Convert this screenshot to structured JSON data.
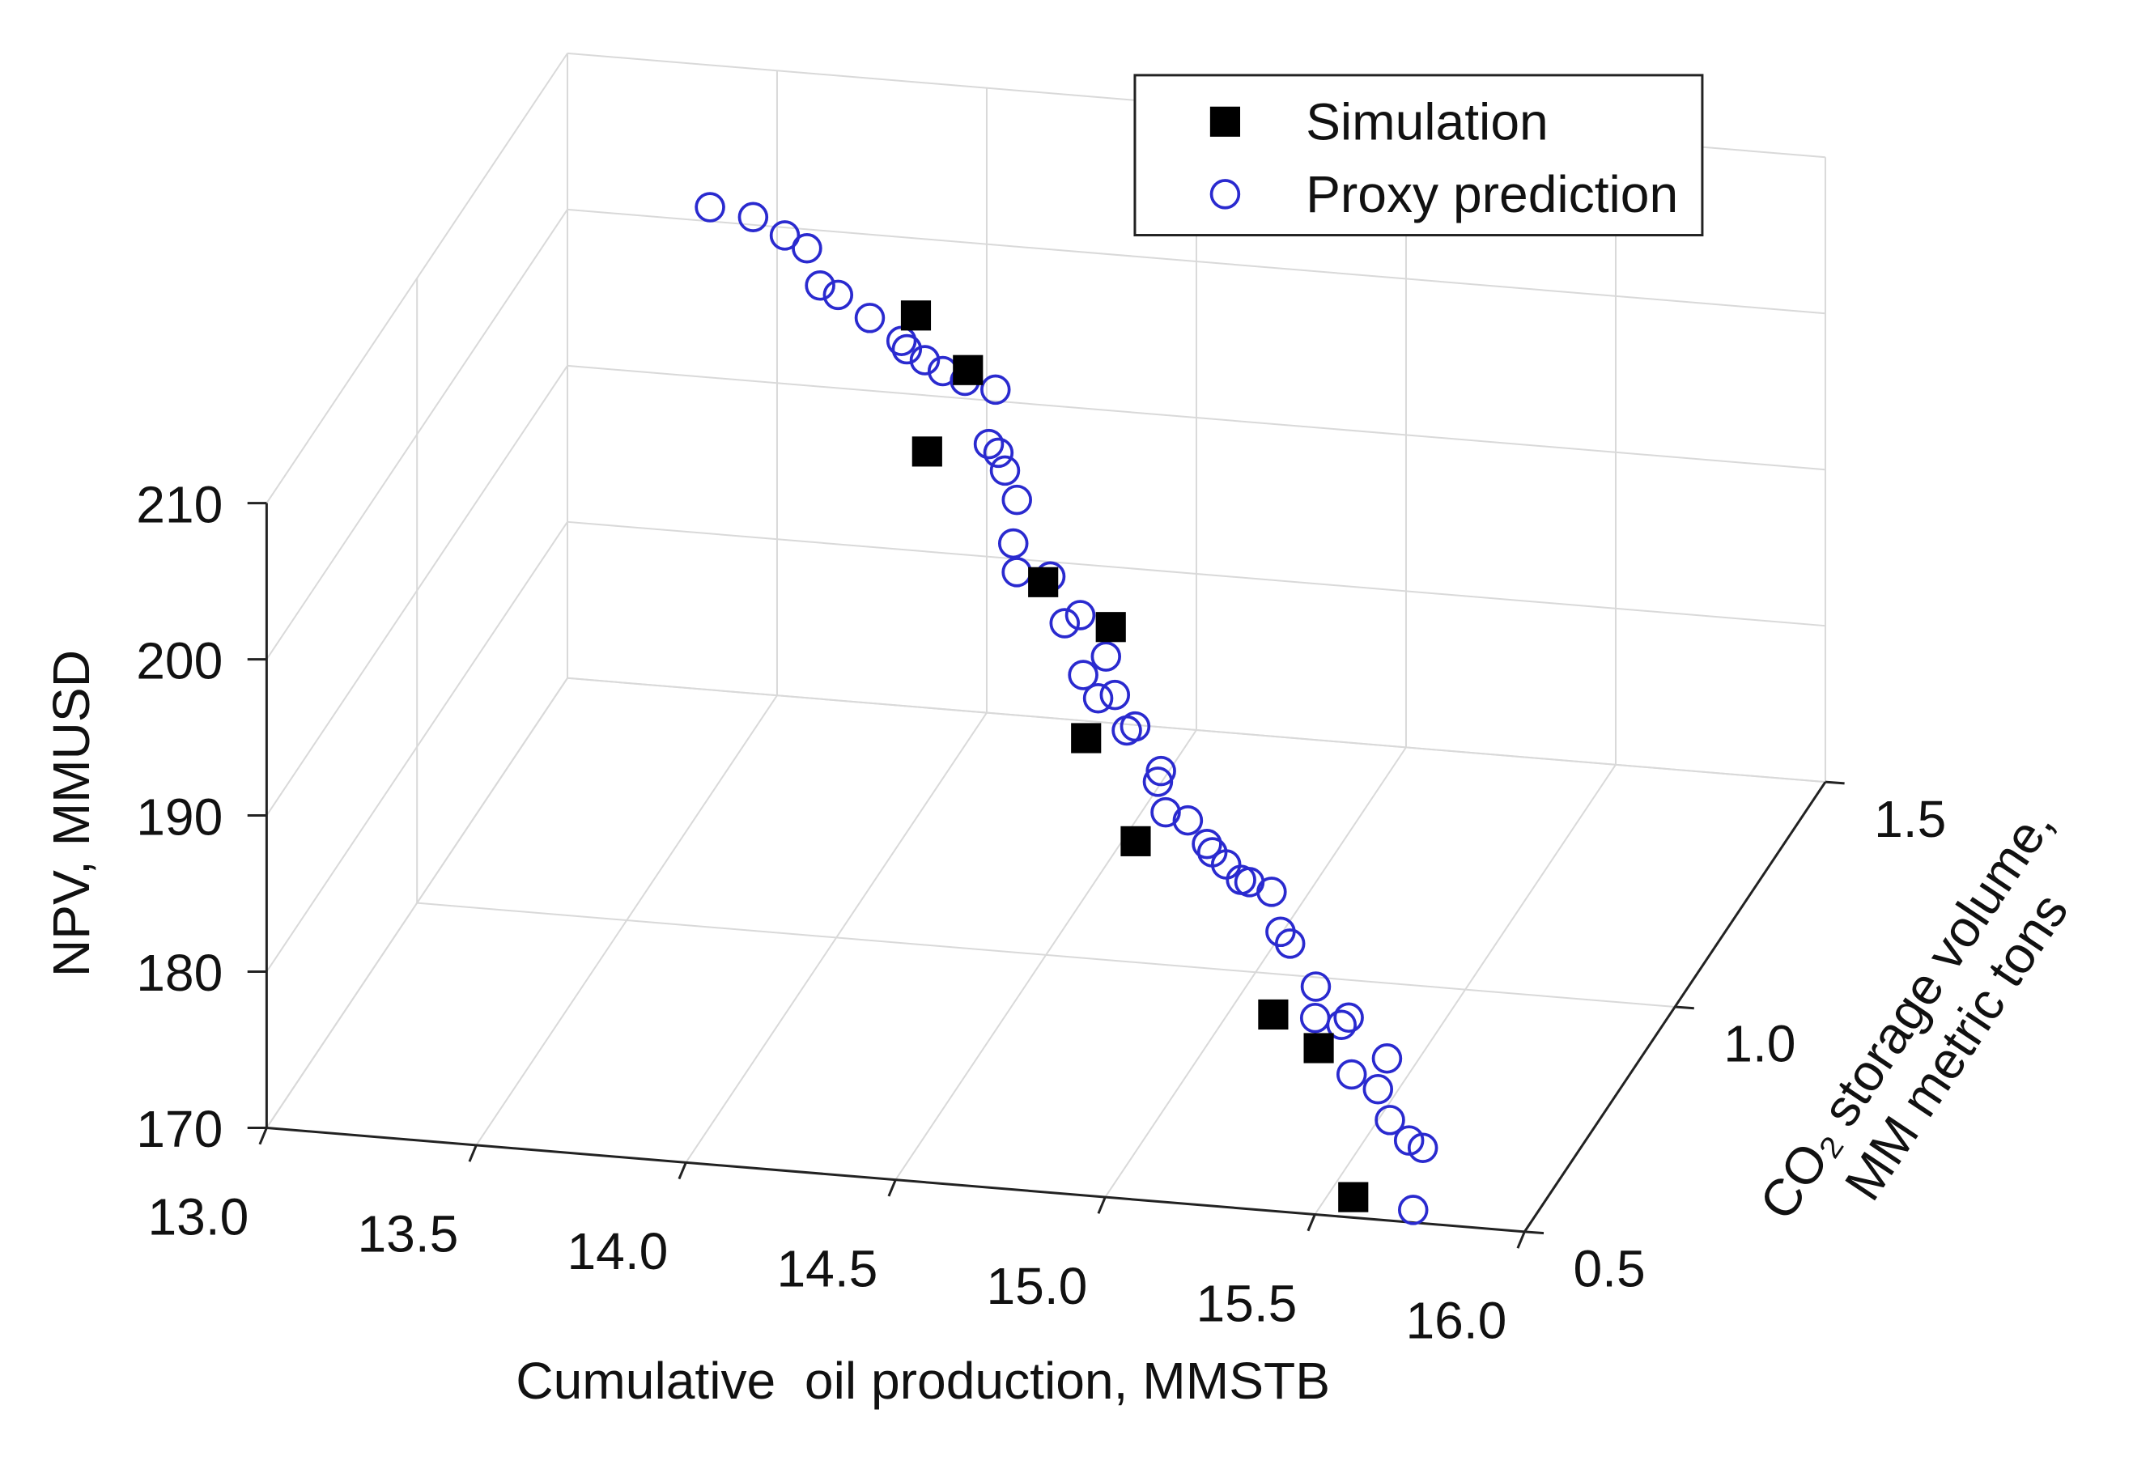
{
  "chart_data": {
    "type": "scatter3d",
    "x_label": "Cumulative  oil production, MMSTB",
    "y_label": [
      "CO₂ storage volume,",
      "MM metric tons"
    ],
    "z_label": "NPV, MMUSD",
    "xlim": [
      13,
      16
    ],
    "ylim": [
      0.5,
      1.5
    ],
    "zlim": [
      170,
      210
    ],
    "xticks": [
      {
        "value": 13,
        "label": "13.0"
      },
      13.5,
      {
        "value": 14,
        "label": "14.0"
      },
      14.5,
      {
        "value": 15,
        "label": "15.0"
      },
      15.5,
      {
        "value": 16,
        "label": "16.0"
      }
    ],
    "yticks": [
      0.5,
      {
        "value": 1,
        "label": "1.0"
      },
      1.5
    ],
    "zticks": [
      170,
      180,
      190,
      200,
      210
    ],
    "grid": true,
    "legend": "upper right",
    "series": [
      {
        "name": "Simulation",
        "color": "#000000",
        "marker": "square",
        "x": [
          13.91,
          14.07,
          14.03,
          14.4,
          14.59,
          14.61,
          14.8,
          15.25,
          15.38,
          15.57
        ],
        "y": [
          1.39,
          1.34,
          1.26,
          1.13,
          1.09,
          0.98,
          0.88,
          0.71,
          0.68,
          0.53
        ],
        "z": [
          198.4,
          196.7,
          193.7,
          189.9,
          188.6,
          184.7,
          181.4,
          176.2,
          175.2,
          170.4
        ]
      },
      {
        "name": "Proxy prediction",
        "color": "#2a2acf",
        "marker": "circle",
        "x": [
          13.34,
          13.45,
          13.54,
          13.6,
          13.66,
          13.71,
          13.8,
          13.89,
          13.91,
          13.96,
          14.01,
          14.07,
          14.15,
          14.17,
          14.2,
          14.23,
          14.28,
          14.3,
          14.33,
          14.41,
          14.48,
          14.51,
          14.6,
          14.56,
          14.65,
          14.61,
          14.72,
          14.7,
          14.81,
          14.81,
          14.85,
          14.91,
          14.97,
          14.99,
          15.03,
          15.08,
          15.1,
          15.16,
          15.21,
          15.24,
          15.33,
          15.35,
          15.43,
          15.42,
          15.55,
          15.48,
          15.55,
          15.6,
          15.66,
          15.7,
          15.72
        ],
        "y": [
          1.5,
          1.49,
          1.47,
          1.46,
          1.42,
          1.41,
          1.39,
          1.37,
          1.36,
          1.35,
          1.34,
          1.33,
          1.32,
          1.27,
          1.26,
          1.24,
          1.21,
          1.17,
          1.14,
          1.14,
          1.09,
          1.1,
          1.06,
          1.04,
          1.02,
          1.02,
          0.99,
          0.99,
          0.95,
          0.94,
          0.91,
          0.9,
          0.88,
          0.87,
          0.86,
          0.84,
          0.84,
          0.83,
          0.79,
          0.78,
          0.74,
          0.71,
          0.71,
          0.7,
          0.67,
          0.65,
          0.64,
          0.61,
          0.59,
          0.58,
          0.52
        ],
        "z": [
          200.9,
          200.8,
          200.4,
          200.0,
          198.9,
          198.7,
          198.0,
          197.3,
          197.1,
          196.8,
          196.5,
          196.3,
          196.2,
          194.2,
          194.0,
          193.5,
          192.6,
          191.0,
          190.1,
          190.0,
          188.6,
          188.9,
          187.6,
          186.9,
          186.4,
          186.1,
          185.4,
          185.1,
          183.9,
          183.5,
          182.5,
          182.4,
          181.6,
          181.4,
          181.0,
          180.7,
          180.6,
          180.4,
          179.1,
          178.7,
          177.3,
          176.2,
          176.4,
          176.2,
          175.2,
          174.6,
          174.1,
          173.1,
          172.5,
          172.4,
          170.2
        ]
      }
    ]
  }
}
